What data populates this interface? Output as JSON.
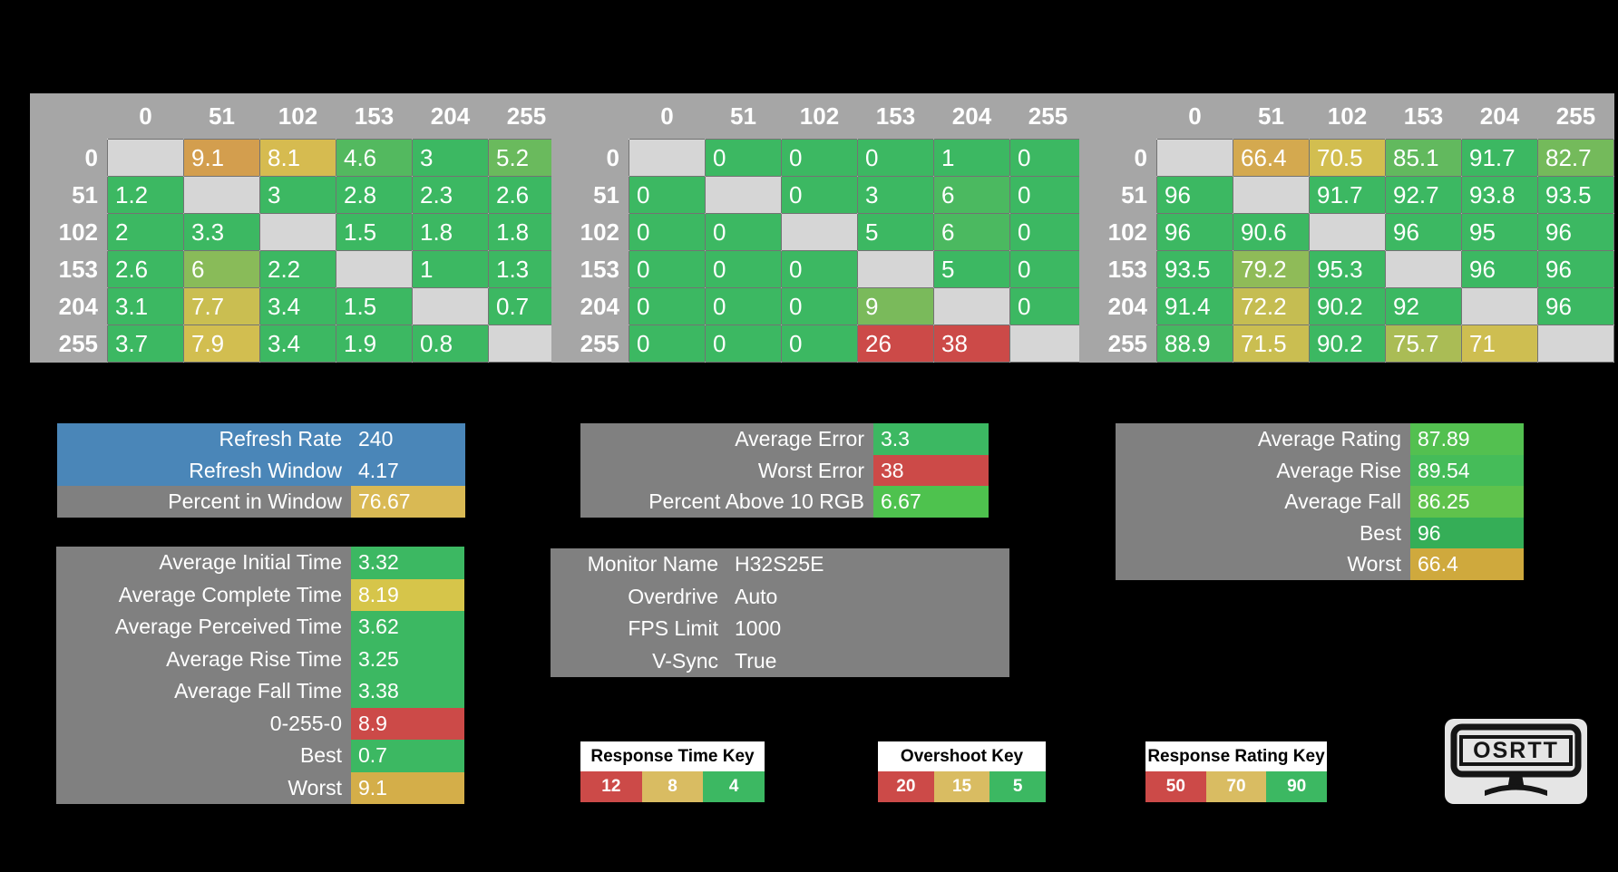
{
  "tables": [
    {
      "name": "response-times",
      "scale": "time",
      "col_headers": [
        "0",
        "51",
        "102",
        "153",
        "204",
        "255"
      ],
      "rows": [
        {
          "label": "0",
          "cells": [
            null,
            "9.1",
            "8.1",
            "4.6",
            "3",
            "5.2"
          ]
        },
        {
          "label": "51",
          "cells": [
            "1.2",
            null,
            "3",
            "2.8",
            "2.3",
            "2.6"
          ]
        },
        {
          "label": "102",
          "cells": [
            "2",
            "3.3",
            null,
            "1.5",
            "1.8",
            "1.8"
          ]
        },
        {
          "label": "153",
          "cells": [
            "2.6",
            "6",
            "2.2",
            null,
            "1",
            "1.3"
          ]
        },
        {
          "label": "204",
          "cells": [
            "3.1",
            "7.7",
            "3.4",
            "1.5",
            null,
            "0.7"
          ]
        },
        {
          "label": "255",
          "cells": [
            "3.7",
            "7.9",
            "3.4",
            "1.9",
            "0.8",
            null
          ]
        }
      ]
    },
    {
      "name": "overshoot",
      "scale": "overshoot",
      "col_headers": [
        "0",
        "51",
        "102",
        "153",
        "204",
        "255"
      ],
      "rows": [
        {
          "label": "0",
          "cells": [
            null,
            "0",
            "0",
            "0",
            "1",
            "0"
          ]
        },
        {
          "label": "51",
          "cells": [
            "0",
            null,
            "0",
            "3",
            "6",
            "0"
          ]
        },
        {
          "label": "102",
          "cells": [
            "0",
            "0",
            null,
            "5",
            "6",
            "0"
          ]
        },
        {
          "label": "153",
          "cells": [
            "0",
            "0",
            "0",
            null,
            "5",
            "0"
          ]
        },
        {
          "label": "204",
          "cells": [
            "0",
            "0",
            "0",
            "9",
            null,
            "0"
          ]
        },
        {
          "label": "255",
          "cells": [
            "0",
            "0",
            "0",
            "26",
            "38",
            null
          ]
        }
      ]
    },
    {
      "name": "response-rating",
      "scale": "rating",
      "col_headers": [
        "0",
        "51",
        "102",
        "153",
        "204",
        "255"
      ],
      "rows": [
        {
          "label": "0",
          "cells": [
            null,
            "66.4",
            "70.5",
            "85.1",
            "91.7",
            "82.7"
          ]
        },
        {
          "label": "51",
          "cells": [
            "96",
            null,
            "91.7",
            "92.7",
            "93.8",
            "93.5"
          ]
        },
        {
          "label": "102",
          "cells": [
            "96",
            "90.6",
            null,
            "96",
            "95",
            "96"
          ]
        },
        {
          "label": "153",
          "cells": [
            "93.5",
            "79.2",
            "95.3",
            null,
            "96",
            "96"
          ]
        },
        {
          "label": "204",
          "cells": [
            "91.4",
            "72.2",
            "90.2",
            "92",
            null,
            "96"
          ]
        },
        {
          "label": "255",
          "cells": [
            "88.9",
            "71.5",
            "90.2",
            "75.7",
            "71",
            null
          ]
        }
      ]
    }
  ],
  "panels": {
    "refresh": {
      "rows": [
        {
          "label": "Refresh Rate",
          "value": "240",
          "row_color": "#4A86B8"
        },
        {
          "label": "Refresh Window",
          "value": "4.17",
          "row_color": "#4A86B8"
        },
        {
          "label": "Percent in Window",
          "value": "76.67",
          "value_color": "#D9B954"
        }
      ]
    },
    "error": {
      "rows": [
        {
          "label": "Average Error",
          "value": "3.3",
          "value_color": "#3CB862"
        },
        {
          "label": "Worst Error",
          "value": "38",
          "value_color": "#CC4A48"
        },
        {
          "label": "Percent Above 10 RGB",
          "value": "6.67",
          "value_color": "#4EC24E"
        }
      ]
    },
    "rating": {
      "rows": [
        {
          "label": "Average Rating",
          "value": "87.89",
          "value_color": "#53C050"
        },
        {
          "label": "Average Rise",
          "value": "89.54",
          "value_color": "#45BC59"
        },
        {
          "label": "Average Fall",
          "value": "86.25",
          "value_color": "#5FC24C"
        },
        {
          "label": "Best",
          "value": "96",
          "value_color": "#35AE57"
        },
        {
          "label": "Worst",
          "value": "66.4",
          "value_color": "#CFA93D"
        }
      ]
    },
    "times": {
      "rows": [
        {
          "label": "Average Initial Time",
          "value": "3.32",
          "value_color": "#3CB862"
        },
        {
          "label": "Average Complete Time",
          "value": "8.19",
          "value_color": "#D6C54A"
        },
        {
          "label": "Average Perceived Time",
          "value": "3.62",
          "value_color": "#3CB862"
        },
        {
          "label": "Average Rise Time",
          "value": "3.25",
          "value_color": "#3CB862"
        },
        {
          "label": "Average Fall Time",
          "value": "3.38",
          "value_color": "#3CB862"
        },
        {
          "label": "0-255-0",
          "value": "8.9",
          "value_color": "#CC4A48"
        },
        {
          "label": "Best",
          "value": "0.7",
          "value_color": "#3CB862"
        },
        {
          "label": "Worst",
          "value": "9.1",
          "value_color": "#D4AE49"
        }
      ]
    },
    "monitor": {
      "rows": [
        {
          "label": "Monitor Name",
          "value": "H32S25E"
        },
        {
          "label": "Overdrive",
          "value": "Auto"
        },
        {
          "label": "FPS Limit",
          "value": "1000"
        },
        {
          "label": "V-Sync",
          "value": "True"
        }
      ]
    }
  },
  "legends": [
    {
      "name": "response-time-key",
      "title": "Response Time Key",
      "cells": [
        {
          "value": "12",
          "color": "#CC4A48"
        },
        {
          "value": "8",
          "color": "#D9BC62"
        },
        {
          "value": "4",
          "color": "#3CB862"
        }
      ]
    },
    {
      "name": "overshoot-key",
      "title": "Overshoot Key",
      "cells": [
        {
          "value": "20",
          "color": "#CC4A48"
        },
        {
          "value": "15",
          "color": "#D9BC62"
        },
        {
          "value": "5",
          "color": "#3CB862"
        }
      ]
    },
    {
      "name": "response-rating-key",
      "title": "Response Rating Key",
      "cells": [
        {
          "value": "50",
          "color": "#CC4A48"
        },
        {
          "value": "70",
          "color": "#D9BC62"
        },
        {
          "value": "90",
          "color": "#3CB862"
        }
      ]
    }
  ],
  "scale_colors": {
    "good": "#3CB862",
    "mid": "#D6BE50",
    "bad": "#CC4A48",
    "blank": "#D6D6D6",
    "header_gray": "#A6A6A6",
    "panel_gray": "#808080",
    "refresh_blue": "#4A86B8"
  },
  "logo": {
    "text": "OSRTT"
  }
}
